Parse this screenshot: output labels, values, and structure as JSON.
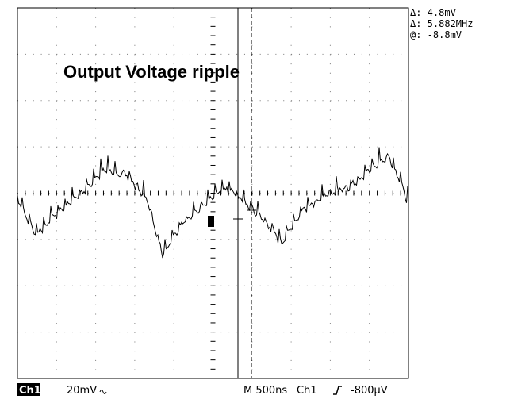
{
  "screen": {
    "title": "Output Voltage ripple",
    "readouts": [
      "Δ: 4.8mV",
      "Δ: 5.882MHz",
      "@: -8.8mV"
    ],
    "status": {
      "channel": "Ch1",
      "scale": "20mV",
      "timebase": "M 500ns",
      "trigger_source": "Ch1",
      "trigger_level": "-800µV"
    }
  }
}
